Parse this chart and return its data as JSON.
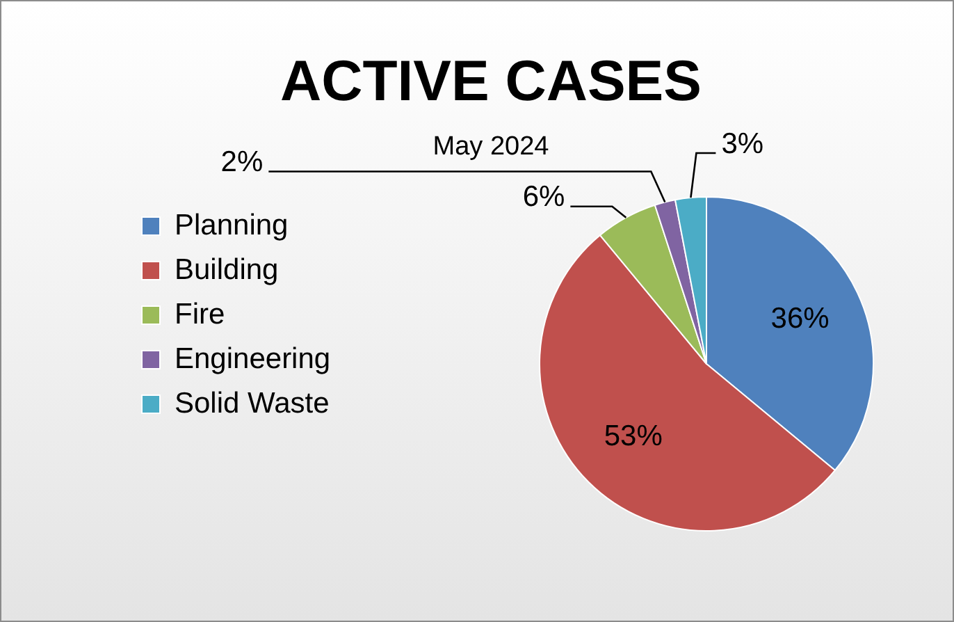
{
  "chart_data": {
    "type": "pie",
    "title": "ACTIVE CASES",
    "subtitle": "May 2024",
    "categories": [
      "Planning",
      "Building",
      "Fire",
      "Engineering",
      "Solid Waste"
    ],
    "values": [
      36,
      53,
      6,
      2,
      3
    ],
    "colors": [
      "#4f81bd",
      "#c0504d",
      "#9bbb59",
      "#8064a2",
      "#4bacc6"
    ],
    "value_labels": [
      "36%",
      "53%",
      "6%",
      "2%",
      "3%"
    ],
    "legend": "left"
  }
}
